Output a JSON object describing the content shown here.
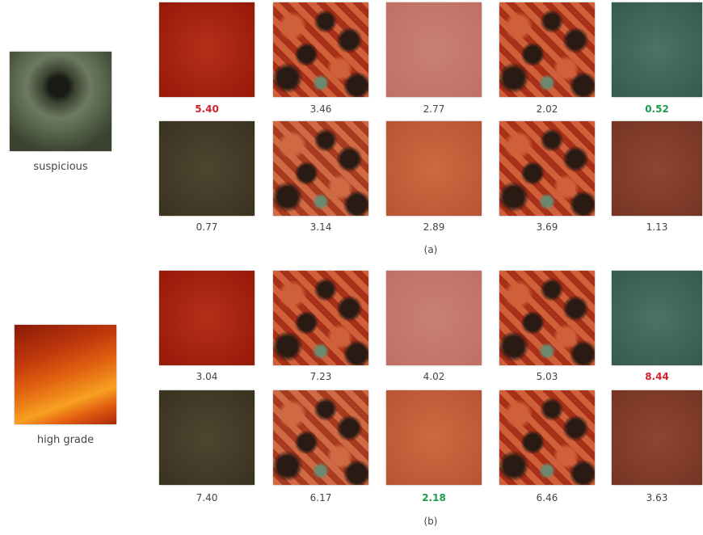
{
  "panels": [
    {
      "query_label": "suspicious",
      "caption": "(a)",
      "rows": [
        [
          {
            "score": "5.40",
            "color": "#d0202e"
          },
          {
            "score": "3.46",
            "color": "#444444"
          },
          {
            "score": "2.77",
            "color": "#444444"
          },
          {
            "score": "2.02",
            "color": "#444444"
          },
          {
            "score": "0.52",
            "color": "#1f9a4a"
          }
        ],
        [
          {
            "score": "0.77",
            "color": "#444444"
          },
          {
            "score": "3.14",
            "color": "#444444"
          },
          {
            "score": "2.89",
            "color": "#444444"
          },
          {
            "score": "3.69",
            "color": "#444444"
          },
          {
            "score": "1.13",
            "color": "#444444"
          }
        ]
      ]
    },
    {
      "query_label": "high grade",
      "caption": "(b)",
      "rows": [
        [
          {
            "score": "3.04",
            "color": "#444444"
          },
          {
            "score": "7.23",
            "color": "#444444"
          },
          {
            "score": "4.02",
            "color": "#444444"
          },
          {
            "score": "5.03",
            "color": "#444444"
          },
          {
            "score": "8.44",
            "color": "#d0202e"
          }
        ],
        [
          {
            "score": "7.40",
            "color": "#444444"
          },
          {
            "score": "6.17",
            "color": "#444444"
          },
          {
            "score": "2.18",
            "color": "#1f9a4a"
          },
          {
            "score": "6.46",
            "color": "#444444"
          },
          {
            "score": "3.63",
            "color": "#444444"
          }
        ]
      ]
    }
  ]
}
